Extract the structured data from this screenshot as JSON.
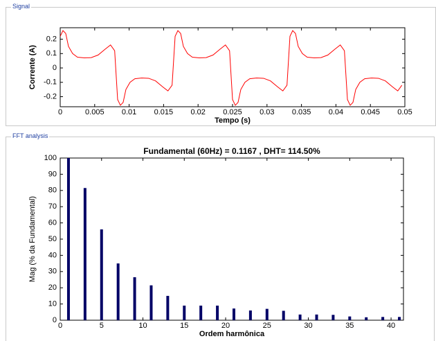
{
  "panels": {
    "signal": "Signal",
    "fft": "FFT analysis"
  },
  "chart_data": [
    {
      "type": "line",
      "xlabel": "Tempo (s)",
      "ylabel": "Corrente (A)",
      "color": "#ff0000",
      "x": [
        0,
        0.0004,
        0.0008,
        0.0012,
        0.0018,
        0.0025,
        0.0035,
        0.0045,
        0.0055,
        0.0065,
        0.0073,
        0.0079,
        0.00833,
        0.00873,
        0.00913,
        0.00953,
        0.01013,
        0.01083,
        0.01183,
        0.01283,
        0.01383,
        0.01483,
        0.01563,
        0.01623,
        0.01667,
        0.01707,
        0.01747,
        0.01787,
        0.01847,
        0.01917,
        0.02017,
        0.02117,
        0.02217,
        0.02317,
        0.02397,
        0.02457,
        0.025,
        0.0254,
        0.0258,
        0.0262,
        0.0268,
        0.0275,
        0.0285,
        0.0295,
        0.0305,
        0.0315,
        0.0323,
        0.0329,
        0.03333,
        0.03373,
        0.03413,
        0.03453,
        0.03513,
        0.03583,
        0.03683,
        0.03783,
        0.03883,
        0.03983,
        0.04063,
        0.04123,
        0.04167,
        0.04207,
        0.04247,
        0.04287,
        0.04347,
        0.04417,
        0.04517,
        0.04617,
        0.04717,
        0.04817,
        0.04897,
        0.04957
      ],
      "values": [
        0.22,
        0.26,
        0.24,
        0.15,
        0.1,
        0.075,
        0.07,
        0.072,
        0.09,
        0.13,
        0.16,
        0.12,
        -0.22,
        -0.26,
        -0.24,
        -0.15,
        -0.1,
        -0.075,
        -0.07,
        -0.072,
        -0.09,
        -0.13,
        -0.16,
        -0.12,
        0.22,
        0.26,
        0.24,
        0.15,
        0.1,
        0.075,
        0.07,
        0.072,
        0.09,
        0.13,
        0.16,
        0.12,
        -0.22,
        -0.26,
        -0.24,
        -0.15,
        -0.1,
        -0.075,
        -0.07,
        -0.072,
        -0.09,
        -0.13,
        -0.16,
        -0.12,
        0.22,
        0.26,
        0.24,
        0.15,
        0.1,
        0.075,
        0.07,
        0.072,
        0.09,
        0.13,
        0.16,
        0.12,
        -0.22,
        -0.26,
        -0.24,
        -0.15,
        -0.1,
        -0.075,
        -0.07,
        -0.072,
        -0.09,
        -0.13,
        -0.16,
        -0.12
      ],
      "xlim": [
        0,
        0.05
      ],
      "xticks": [
        0,
        0.005,
        0.01,
        0.015,
        0.02,
        0.025,
        0.03,
        0.035,
        0.04,
        0.045,
        0.05
      ],
      "ylim": [
        -0.27,
        0.28
      ],
      "yticks": [
        -0.2,
        -0.1,
        0,
        0.1,
        0.2
      ]
    },
    {
      "type": "bar",
      "title": "Fundamental (60Hz) = 0.1167 , DHT= 114.50%",
      "xlabel": "Ordem harmônica",
      "ylabel": "Mag (% da Fundamental)",
      "color": "#000066",
      "x": [
        1,
        3,
        5,
        7,
        9,
        11,
        13,
        15,
        17,
        19,
        21,
        23,
        25,
        27,
        29,
        31,
        33,
        35,
        37,
        39,
        41
      ],
      "values": [
        100,
        81.5,
        56,
        35,
        26.5,
        21.5,
        15,
        9,
        9,
        9,
        7.2,
        6,
        7,
        5.8,
        3.5,
        3.5,
        3.3,
        2.3,
        1.8,
        2,
        2
      ],
      "xlim": [
        0,
        41.5
      ],
      "xticks": [
        0,
        5,
        10,
        15,
        20,
        25,
        30,
        35,
        40
      ],
      "ylim": [
        0,
        100
      ],
      "yticks": [
        0,
        10,
        20,
        30,
        40,
        50,
        60,
        70,
        80,
        90,
        100
      ]
    }
  ]
}
